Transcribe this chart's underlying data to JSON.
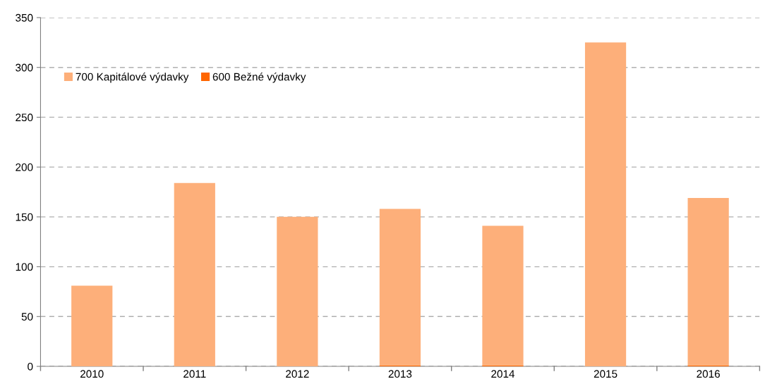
{
  "chart_data": {
    "type": "bar",
    "stacked": true,
    "categories": [
      "2010",
      "2011",
      "2012",
      "2013",
      "2014",
      "2015",
      "2016"
    ],
    "series": [
      {
        "name": "600 Bežné výdavky",
        "color": "#ff6600",
        "values": [
          0,
          0,
          0,
          1,
          1,
          0,
          1
        ]
      },
      {
        "name": "700 Kapitálové výdavky",
        "color": "#fdaf7a",
        "values": [
          81,
          184,
          150,
          157,
          140,
          325,
          168
        ]
      }
    ],
    "ylim": [
      0,
      350
    ],
    "yticks": [
      0,
      50,
      100,
      150,
      200,
      250,
      300,
      350
    ],
    "grid": "y",
    "legend": "top left"
  }
}
